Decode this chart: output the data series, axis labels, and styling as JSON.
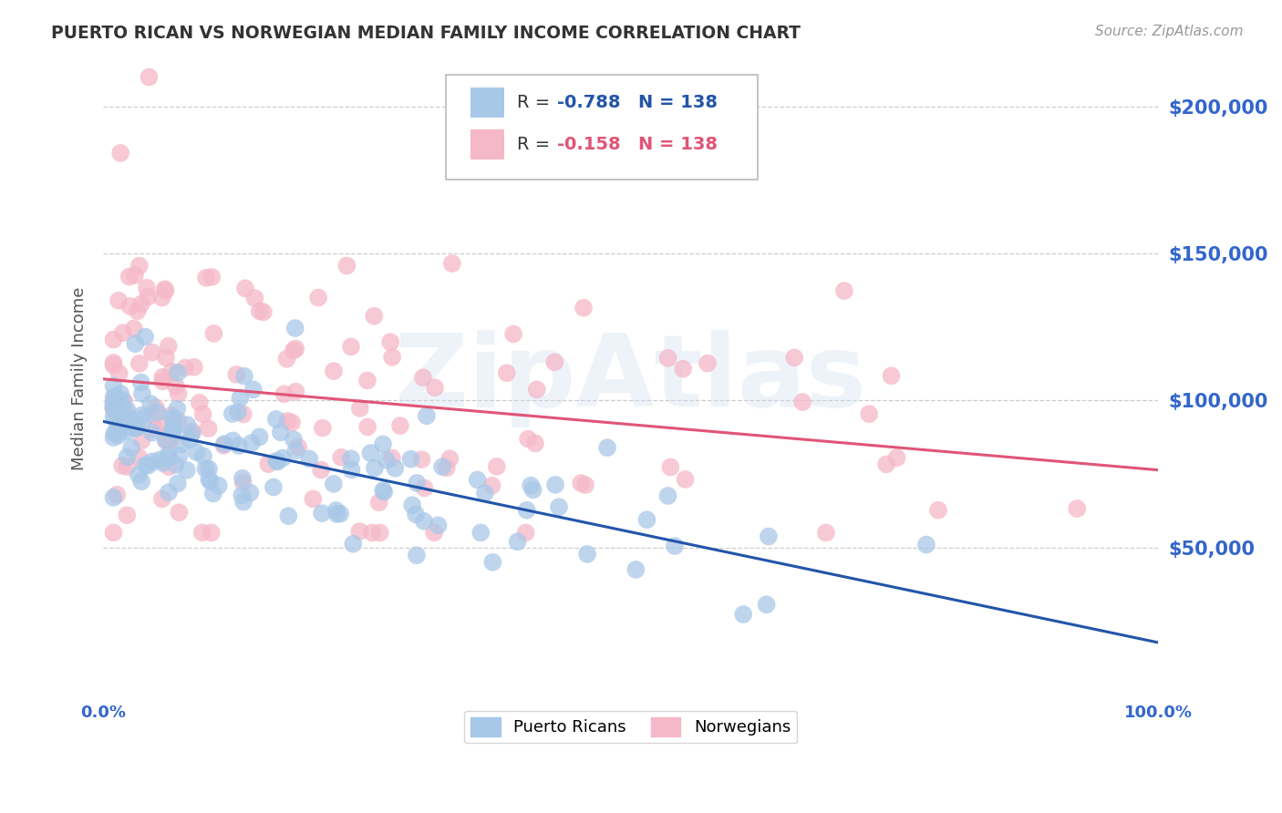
{
  "title": "PUERTO RICAN VS NORWEGIAN MEDIAN FAMILY INCOME CORRELATION CHART",
  "source": "Source: ZipAtlas.com",
  "ylabel": "Median Family Income",
  "ylim": [
    0,
    215000
  ],
  "xlim": [
    0,
    1.0
  ],
  "blue_R": "-0.788",
  "blue_N": "138",
  "pink_R": "-0.158",
  "pink_N": "138",
  "blue_color": "#a8c8e8",
  "pink_color": "#f5b8c8",
  "blue_line_color": "#2255aa",
  "pink_line_color": "#e05577",
  "legend_blue_label": "Puerto Ricans",
  "legend_pink_label": "Norwegians",
  "title_color": "#333333",
  "source_color": "#999999",
  "axis_label_color": "#555555",
  "tick_color": "#3366cc",
  "watermark_text": "ZipAtlas",
  "background_color": "#ffffff",
  "grid_color": "#cccccc"
}
